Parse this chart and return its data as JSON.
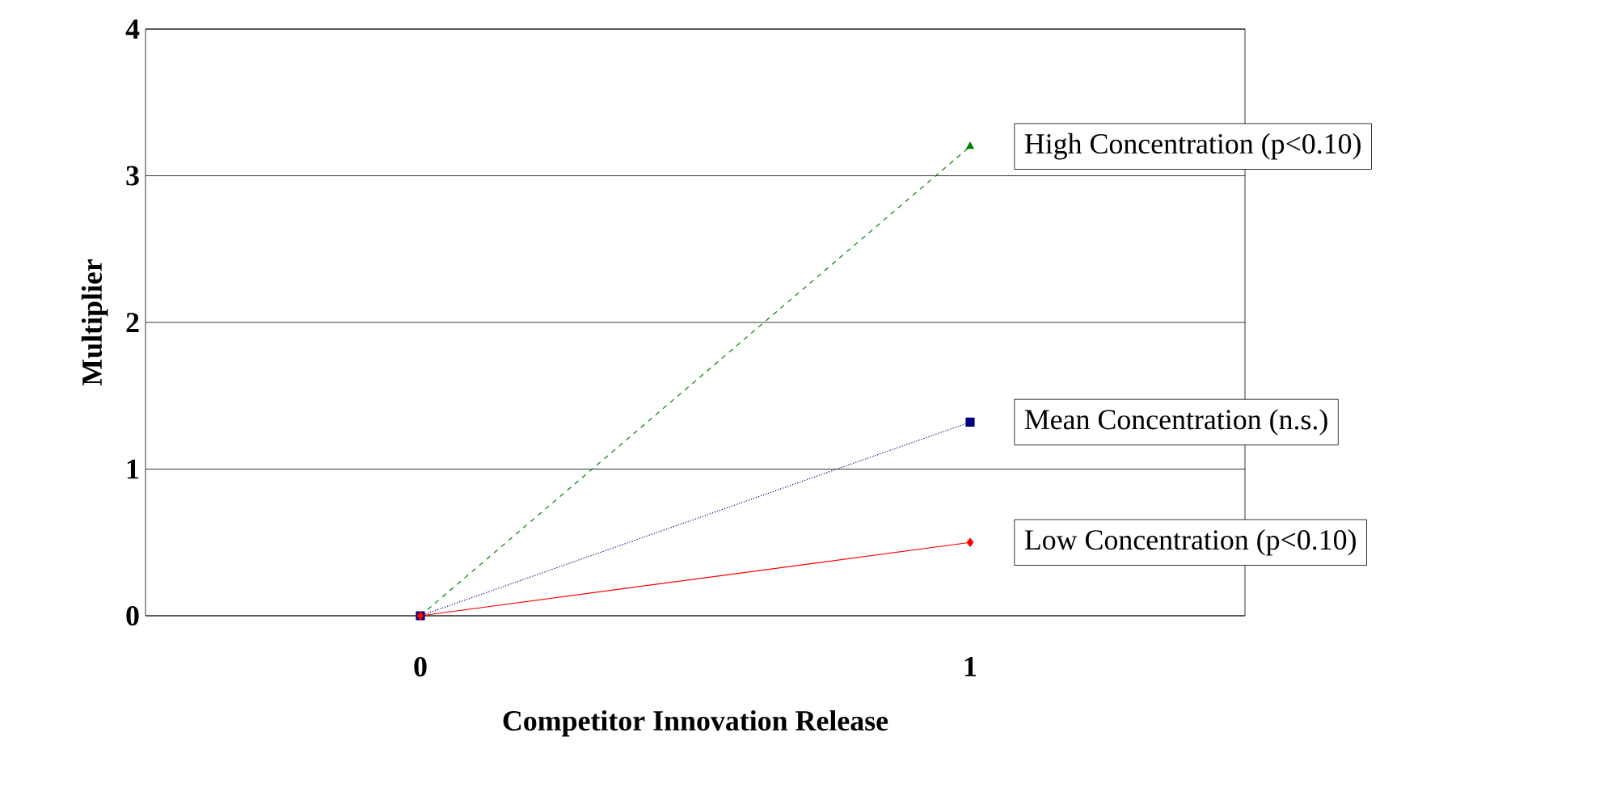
{
  "chart_data": {
    "type": "line",
    "xlabel": "Competitor Innovation Release",
    "ylabel": "Multiplier",
    "categories": [
      "0",
      "1"
    ],
    "ylim": [
      0,
      4
    ],
    "yticks": [
      0,
      1,
      2,
      3,
      4
    ],
    "grid": "y",
    "series": [
      {
        "name": "High Concentration (p<0.10)",
        "color": "#008000",
        "values": [
          0,
          3.2
        ],
        "marker": "triangle",
        "line_style": "dashed"
      },
      {
        "name": "Mean Concentration (n.s.)",
        "color": "#000080",
        "values": [
          0,
          1.32
        ],
        "marker": "square",
        "line_style": "dotted"
      },
      {
        "name": "Low Concentration (p<0.10)",
        "color": "#ff0000",
        "values": [
          0,
          0.5
        ],
        "marker": "diamond",
        "line_style": "solid"
      }
    ]
  }
}
